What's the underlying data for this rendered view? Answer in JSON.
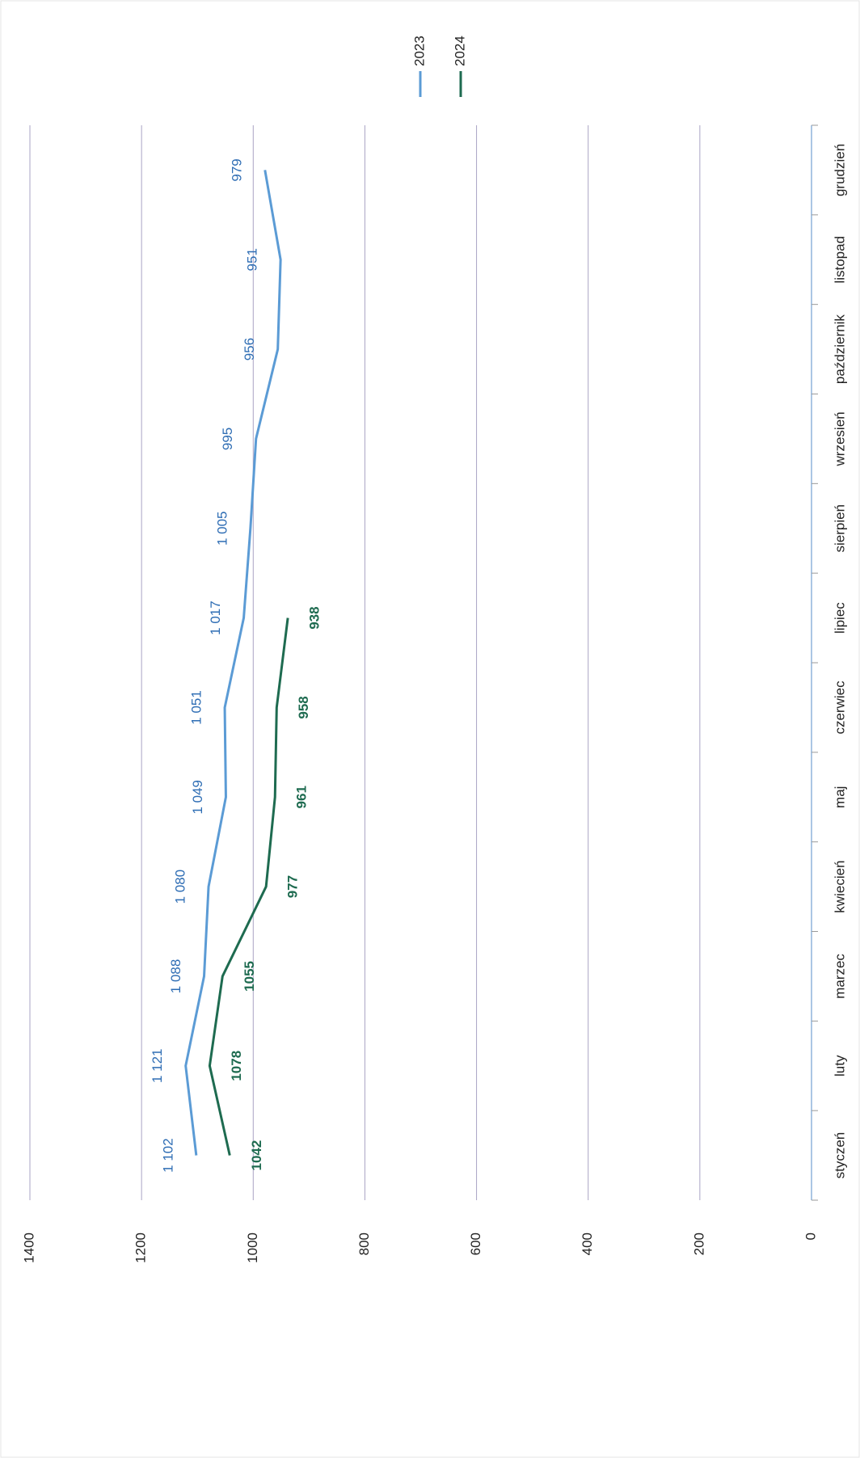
{
  "chart_data": {
    "type": "line",
    "categories": [
      "styczeń",
      "luty",
      "marzec",
      "kwiecień",
      "maj",
      "czerwiec",
      "lipiec",
      "sierpień",
      "wrzesień",
      "październik",
      "listopad",
      "grudzień"
    ],
    "series": [
      {
        "name": "2023",
        "color": "#5b9bd5",
        "label_color": "#2e6db4",
        "values": [
          1102,
          1121,
          1088,
          1080,
          1049,
          1051,
          1017,
          1005,
          995,
          956,
          951,
          979
        ],
        "value_labels": [
          "1 102",
          "1 121",
          "1 088",
          "1 080",
          "1 049",
          "1 051",
          "1 017",
          "1 005",
          "995",
          "956",
          "951",
          "979"
        ]
      },
      {
        "name": "2024",
        "color": "#1e6b50",
        "label_color": "#1e6b50",
        "values": [
          1042,
          1078,
          1055,
          977,
          961,
          958,
          938,
          null,
          null,
          null,
          null,
          null
        ]
      }
    ],
    "ylim": [
      0,
      1400
    ],
    "yticks": [
      0,
      200,
      400,
      600,
      800,
      1000,
      1200,
      1400
    ],
    "grid": true,
    "legend": "top-right"
  }
}
